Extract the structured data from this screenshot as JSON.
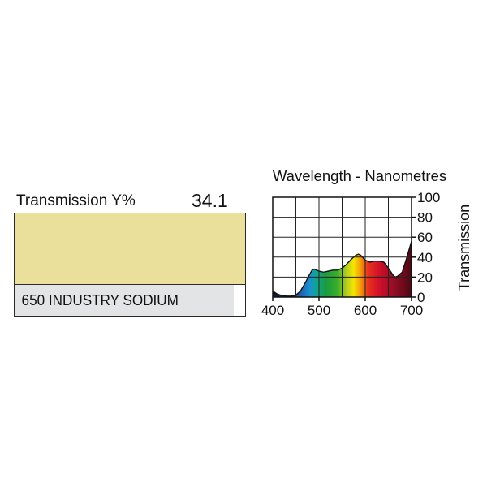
{
  "transmission": {
    "label": "Transmission Y%",
    "value": "34.1"
  },
  "swatch": {
    "color": "#ebdf9c",
    "name": "650 INDUSTRY SODIUM"
  },
  "chart_data": {
    "type": "area",
    "title": "Wavelength - Nanometres",
    "xlabel": "",
    "ylabel": "Transmission",
    "xlim": [
      400,
      700
    ],
    "ylim": [
      0,
      100
    ],
    "x_ticks": [
      400,
      500,
      600,
      700
    ],
    "y_ticks": [
      0,
      20,
      40,
      60,
      80,
      100
    ],
    "grid": true,
    "x": [
      400,
      410,
      420,
      430,
      440,
      450,
      460,
      470,
      480,
      485,
      490,
      500,
      510,
      520,
      530,
      540,
      550,
      560,
      570,
      580,
      585,
      590,
      600,
      610,
      620,
      630,
      640,
      650,
      660,
      665,
      670,
      680,
      690,
      700
    ],
    "y": [
      6,
      3,
      1.5,
      1,
      1,
      2,
      6,
      14,
      23,
      27,
      28,
      26,
      25,
      26,
      27,
      27,
      29,
      33,
      38,
      42,
      43,
      42,
      37,
      35,
      36,
      36,
      35,
      29,
      22,
      20,
      21,
      25,
      40,
      56
    ],
    "color_stops": [
      {
        "x": 400,
        "color": "#0c0f2e"
      },
      {
        "x": 430,
        "color": "#1a2a6b"
      },
      {
        "x": 460,
        "color": "#1d5fae"
      },
      {
        "x": 480,
        "color": "#1b8fd0"
      },
      {
        "x": 495,
        "color": "#0fa58f"
      },
      {
        "x": 515,
        "color": "#1a9b3f"
      },
      {
        "x": 540,
        "color": "#3aae2b"
      },
      {
        "x": 560,
        "color": "#b7cf1f"
      },
      {
        "x": 575,
        "color": "#f5e400"
      },
      {
        "x": 590,
        "color": "#f39b0a"
      },
      {
        "x": 605,
        "color": "#e9341c"
      },
      {
        "x": 630,
        "color": "#d0102a"
      },
      {
        "x": 660,
        "color": "#9a0c25"
      },
      {
        "x": 700,
        "color": "#4a0a14"
      }
    ]
  }
}
